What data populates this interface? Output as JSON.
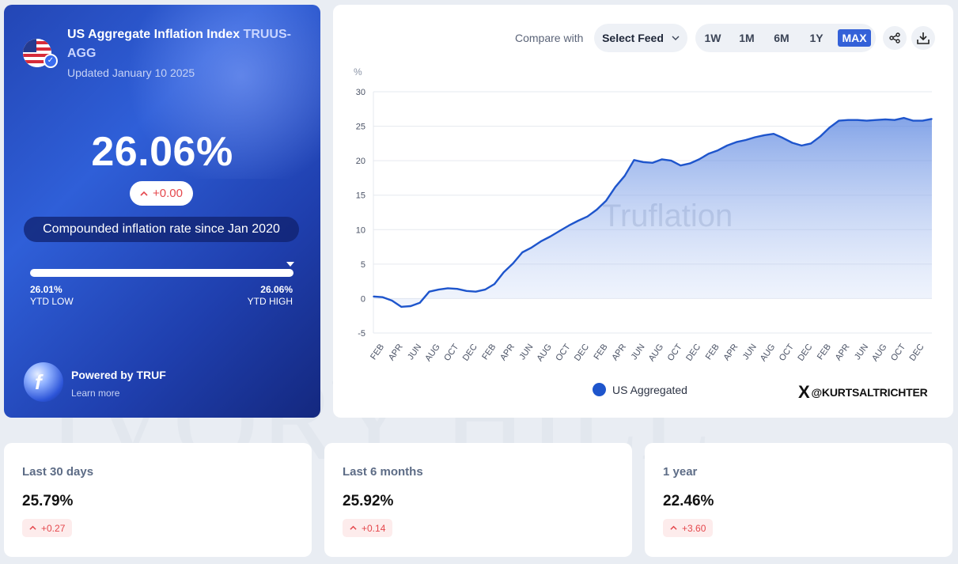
{
  "summary": {
    "title": "US Aggregate Inflation Index",
    "ticker": "TRUUS-AGG",
    "updated": "Updated January 10 2025",
    "value": "26.06%",
    "change": "+0.00",
    "caption": "Compounded inflation rate since Jan 2020",
    "ytd_low_value": "26.01%",
    "ytd_low_label": "YTD LOW",
    "ytd_high_value": "26.06%",
    "ytd_high_label": "YTD HIGH",
    "powered_by": "Powered by TRUF",
    "learn_more": "Learn more",
    "icons": {
      "flag": "us-flag-icon",
      "badge": "truflation-badge-icon",
      "logo": "truf-logo-icon"
    }
  },
  "toolbar": {
    "compare_label": "Compare with",
    "select_feed": "Select Feed",
    "ranges": [
      "1W",
      "1M",
      "6M",
      "1Y",
      "MAX"
    ],
    "active_range": "MAX",
    "share_icon": "share-icon",
    "download_icon": "download-icon"
  },
  "chart_data": {
    "type": "area",
    "ylabel": "%",
    "ylim": [
      -5,
      30
    ],
    "yticks": [
      30,
      25,
      20,
      15,
      10,
      5,
      0,
      -5
    ],
    "xticks": [
      "FEB",
      "APR",
      "JUN",
      "AUG",
      "OCT",
      "DEC",
      "FEB",
      "APR",
      "JUN",
      "AUG",
      "OCT",
      "DEC",
      "FEB",
      "APR",
      "JUN",
      "AUG",
      "OCT",
      "DEC",
      "FEB",
      "APR",
      "JUN",
      "AUG",
      "OCT",
      "DEC",
      "FEB",
      "APR",
      "JUN",
      "AUG",
      "OCT",
      "DEC"
    ],
    "x_start": "2020-01",
    "x_end": "2025-01",
    "watermark": "Truflation",
    "grid": true,
    "color": "#1e55cc",
    "series": [
      {
        "name": "US Aggregated",
        "x": [
          "2020-01",
          "2020-02",
          "2020-03",
          "2020-04",
          "2020-05",
          "2020-06",
          "2020-07",
          "2020-08",
          "2020-09",
          "2020-10",
          "2020-11",
          "2020-12",
          "2021-01",
          "2021-02",
          "2021-03",
          "2021-04",
          "2021-05",
          "2021-06",
          "2021-07",
          "2021-08",
          "2021-09",
          "2021-10",
          "2021-11",
          "2021-12",
          "2022-01",
          "2022-02",
          "2022-03",
          "2022-04",
          "2022-05",
          "2022-06",
          "2022-07",
          "2022-08",
          "2022-09",
          "2022-10",
          "2022-11",
          "2022-12",
          "2023-01",
          "2023-02",
          "2023-03",
          "2023-04",
          "2023-05",
          "2023-06",
          "2023-07",
          "2023-08",
          "2023-09",
          "2023-10",
          "2023-11",
          "2023-12",
          "2024-01",
          "2024-02",
          "2024-03",
          "2024-04",
          "2024-05",
          "2024-06",
          "2024-07",
          "2024-08",
          "2024-09",
          "2024-10",
          "2024-11",
          "2024-12",
          "2025-01"
        ],
        "values": [
          0.3,
          0.2,
          -0.3,
          -1.2,
          -1.1,
          -0.6,
          1.0,
          1.3,
          1.5,
          1.4,
          1.1,
          1.0,
          1.3,
          2.1,
          3.8,
          5.1,
          6.7,
          7.4,
          8.3,
          9.0,
          9.8,
          10.6,
          11.3,
          11.9,
          12.9,
          14.2,
          16.2,
          17.8,
          20.1,
          19.8,
          19.7,
          20.2,
          20.0,
          19.3,
          19.6,
          20.2,
          21.0,
          21.5,
          22.2,
          22.7,
          23.0,
          23.4,
          23.7,
          23.9,
          23.3,
          22.6,
          22.2,
          22.5,
          23.5,
          24.8,
          25.8,
          25.9,
          25.9,
          25.8,
          25.9,
          26.0,
          25.9,
          26.2,
          25.8,
          25.8,
          26.06
        ]
      }
    ]
  },
  "legend": {
    "label": "US Aggregated"
  },
  "credit": {
    "handle": "@KURTSALTRICHTER",
    "icon": "x-logo-icon"
  },
  "stats": [
    {
      "label": "Last 30 days",
      "value": "25.79%",
      "change": "+0.27"
    },
    {
      "label": "Last 6 months",
      "value": "25.92%",
      "change": "+0.14"
    },
    {
      "label": "1 year",
      "value": "22.46%",
      "change": "+3.60"
    }
  ]
}
